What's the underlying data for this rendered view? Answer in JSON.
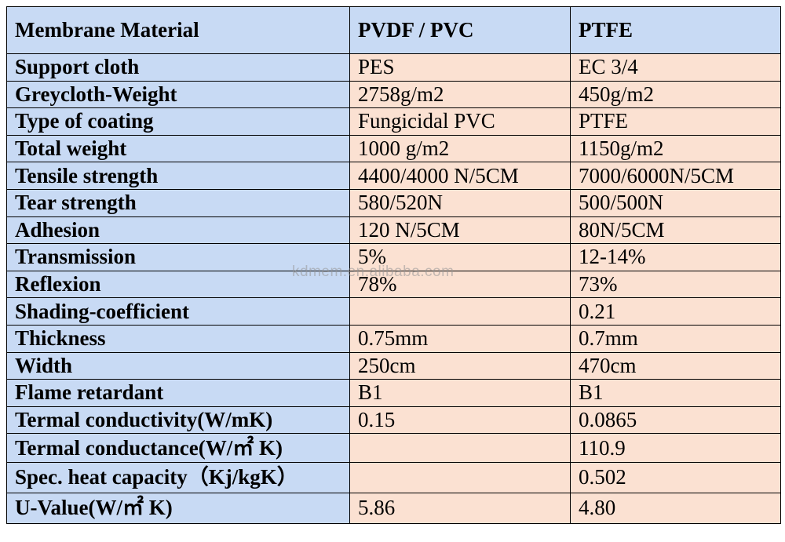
{
  "table": {
    "headers": [
      "Membrane Material",
      "PVDF / PVC",
      "PTFE"
    ],
    "rows": [
      [
        "Support cloth",
        "PES",
        "EC 3/4"
      ],
      [
        "Greycloth-Weight",
        "2758g/m2",
        "450g/m2"
      ],
      [
        "Type of coating",
        "Fungicidal PVC",
        "PTFE"
      ],
      [
        "Total weight",
        "1000 g/m2",
        "1150g/m2"
      ],
      [
        "Tensile strength",
        "4400/4000 N/5CM",
        "7000/6000N/5CM"
      ],
      [
        "Tear strength",
        "580/520N",
        "500/500N"
      ],
      [
        "Adhesion",
        "120 N/5CM",
        "80N/5CM"
      ],
      [
        "Transmission",
        "5%",
        "12-14%"
      ],
      [
        "Reflexion",
        "78%",
        "73%"
      ],
      [
        "Shading-coefficient",
        "",
        "0.21"
      ],
      [
        "Thickness",
        "0.75mm",
        "0.7mm"
      ],
      [
        "Width",
        "250cm",
        "470cm"
      ],
      [
        "Flame retardant",
        "B1",
        "B1"
      ],
      [
        "Termal conductivity(W/mK)",
        "0.15",
        "0.0865"
      ],
      [
        "Termal conductance(W/㎡ K)",
        "",
        "110.9"
      ],
      [
        "Spec. heat capacity（Kj/kgK）",
        "",
        "0.502"
      ],
      [
        "U-Value(W/㎡ K)",
        "5.86",
        "4.80"
      ]
    ]
  },
  "watermark": "kdmem.en.alibaba.com",
  "colors": {
    "header_bg": "#c8daf4",
    "label_bg": "#c8daf4",
    "value_bg": "#fbe1d2",
    "border": "#000000"
  }
}
